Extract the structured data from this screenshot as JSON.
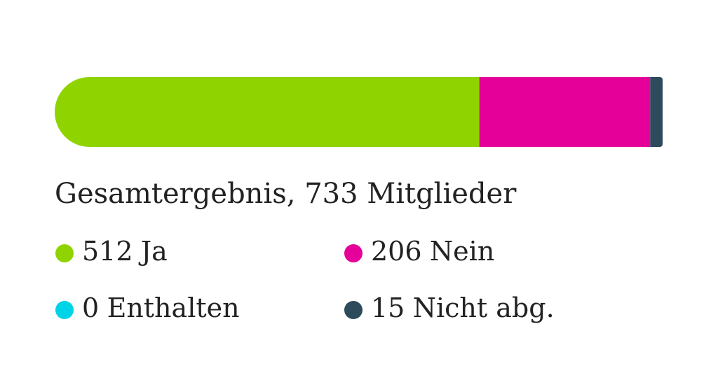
{
  "chart_data": {
    "type": "bar",
    "orientation": "horizontal",
    "stacked": true,
    "title": "Gesamtergebnis, 733 Mitglieder",
    "xlim": [
      0,
      733
    ],
    "series": [
      {
        "name": "Ja",
        "color": "#8fd400",
        "values": [
          512
        ]
      },
      {
        "name": "Nein",
        "color": "#e6009a",
        "values": [
          206
        ]
      },
      {
        "name": "Enthalten",
        "color": "#00d3e8",
        "values": [
          0
        ]
      },
      {
        "name": "Nicht abg.",
        "color": "#2e4b5c",
        "values": [
          15
        ]
      }
    ]
  }
}
